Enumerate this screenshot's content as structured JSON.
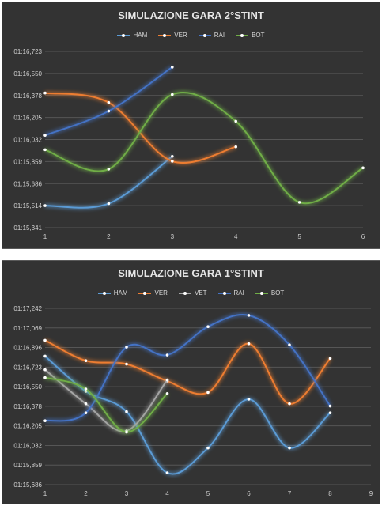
{
  "chart_data": [
    {
      "type": "line",
      "title": "SIMULAZIONE GARA 2°STINT",
      "x": [
        1,
        2,
        3,
        4,
        5,
        6
      ],
      "y_ticks": [
        "01:15,341",
        "01:15,514",
        "01:15,686",
        "01:15,859",
        "01:16,032",
        "01:16,205",
        "01:16,378",
        "01:16,550",
        "01:16,723"
      ],
      "ylim": [
        75.341,
        76.723
      ],
      "series": [
        {
          "name": "HAM",
          "color": "#5b9bd5",
          "x": [
            1,
            2,
            3
          ],
          "values": [
            75.514,
            75.53,
            75.9
          ]
        },
        {
          "name": "VER",
          "color": "#ed7d31",
          "x": [
            1,
            2,
            3,
            4
          ],
          "values": [
            76.397,
            76.322,
            75.862,
            75.975
          ]
        },
        {
          "name": "RAI",
          "color": "#4472c4",
          "x": [
            1,
            2,
            3
          ],
          "values": [
            76.065,
            76.255,
            76.6
          ]
        },
        {
          "name": "BOT",
          "color": "#70ad47",
          "x": [
            1,
            2,
            3,
            4,
            5,
            6
          ],
          "values": [
            75.952,
            75.8,
            76.385,
            76.175,
            75.54,
            75.81
          ]
        }
      ],
      "grid": true,
      "legend": "top"
    },
    {
      "type": "line",
      "title": "SIMULAZIONE GARA 1°STINT",
      "x": [
        1,
        2,
        3,
        4,
        5,
        6,
        7,
        8,
        9
      ],
      "y_ticks": [
        "01:15,686",
        "01:15,859",
        "01:16,032",
        "01:16,205",
        "01:16,378",
        "01:16,550",
        "01:16,723",
        "01:16,896",
        "01:17,069",
        "01:17,242"
      ],
      "ylim": [
        75.686,
        77.242
      ],
      "series": [
        {
          "name": "HAM",
          "color": "#5b9bd5",
          "x": [
            1,
            2,
            3,
            4,
            5,
            6,
            7,
            8
          ],
          "values": [
            76.82,
            76.51,
            76.33,
            75.79,
            76.01,
            76.44,
            76.01,
            76.32
          ]
        },
        {
          "name": "VER",
          "color": "#ed7d31",
          "x": [
            1,
            2,
            3,
            4,
            5,
            6,
            7,
            8
          ],
          "values": [
            76.96,
            76.78,
            76.75,
            76.6,
            76.5,
            76.93,
            76.4,
            76.8
          ]
        },
        {
          "name": "VET",
          "color": "#a5a5a5",
          "x": [
            1,
            2,
            3,
            4
          ],
          "values": [
            76.7,
            76.4,
            76.16,
            76.61
          ]
        },
        {
          "name": "RAI",
          "color": "#4472c4",
          "x": [
            1,
            2,
            3,
            4,
            5,
            6,
            7,
            8
          ],
          "values": [
            76.25,
            76.32,
            76.9,
            76.83,
            77.08,
            77.18,
            76.92,
            76.38
          ]
        },
        {
          "name": "BOT",
          "color": "#70ad47",
          "x": [
            1,
            2,
            3,
            4
          ],
          "values": [
            76.63,
            76.53,
            76.15,
            76.49
          ]
        }
      ],
      "grid": true,
      "legend": "top"
    }
  ]
}
